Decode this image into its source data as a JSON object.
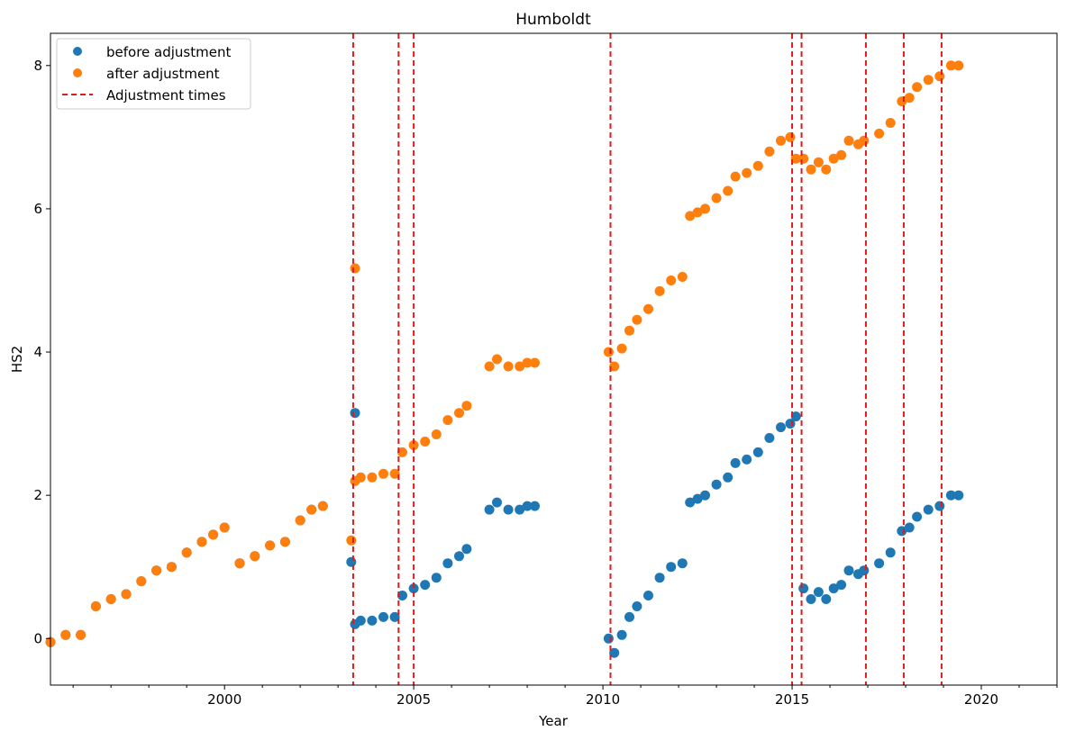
{
  "chart_data": {
    "type": "scatter",
    "title": "Humboldt",
    "xlabel": "Year",
    "ylabel": "HS2",
    "xlim": [
      1995.4,
      2022.0
    ],
    "ylim": [
      -0.65,
      8.45
    ],
    "xticks": [
      2000,
      2005,
      2010,
      2015,
      2020
    ],
    "xtick_labels": [
      "2000",
      "2005",
      "2010",
      "2015",
      "2020"
    ],
    "yticks": [
      0,
      2,
      4,
      6,
      8
    ],
    "ytick_labels": [
      "0",
      "2",
      "4",
      "6",
      "8"
    ],
    "grid": false,
    "legend": {
      "position": "top-left",
      "entries": [
        "before adjustment",
        "after adjustment",
        "Adjustment times"
      ]
    },
    "adjustment_times": [
      2003.4,
      2004.6,
      2005.0,
      2010.2,
      2015.0,
      2015.25,
      2016.95,
      2017.95,
      2018.95
    ],
    "series": [
      {
        "name": "before adjustment",
        "color": "#1f77b4",
        "x": [
          1995.4,
          1995.8,
          1996.2,
          1996.6,
          1997.0,
          1997.4,
          1997.8,
          1998.2,
          1998.6,
          1999.0,
          1999.4,
          1999.7,
          2000.0,
          2000.4,
          2000.8,
          2001.2,
          2001.6,
          2002.0,
          2002.3,
          2002.6,
          2003.35,
          2003.45,
          2003.45,
          2003.6,
          2003.9,
          2004.2,
          2004.5,
          2004.7,
          2005.0,
          2005.3,
          2005.6,
          2005.9,
          2006.2,
          2006.4,
          2007.0,
          2007.2,
          2007.5,
          2007.8,
          2008.0,
          2008.2,
          2010.15,
          2010.3,
          2010.5,
          2010.7,
          2010.9,
          2011.2,
          2011.5,
          2011.8,
          2012.1,
          2012.3,
          2012.5,
          2012.7,
          2013.0,
          2013.3,
          2013.5,
          2013.8,
          2014.1,
          2014.4,
          2014.7,
          2014.95,
          2015.1,
          2015.3,
          2015.5,
          2015.7,
          2015.9,
          2016.1,
          2016.3,
          2016.5,
          2016.75,
          2016.9,
          2017.3,
          2017.6,
          2017.9,
          2018.1,
          2018.3,
          2018.6,
          2018.9,
          2019.2,
          2019.4
        ],
        "values": [
          -0.05,
          0.05,
          0.05,
          0.45,
          0.55,
          0.62,
          0.8,
          0.95,
          1.0,
          1.2,
          1.35,
          1.45,
          1.55,
          1.05,
          1.15,
          1.3,
          1.35,
          1.65,
          1.8,
          1.85,
          1.07,
          0.2,
          3.15,
          0.25,
          0.25,
          0.3,
          0.3,
          0.6,
          0.7,
          0.75,
          0.85,
          1.05,
          1.15,
          1.25,
          1.8,
          1.9,
          1.8,
          1.8,
          1.85,
          1.85,
          0.0,
          -0.2,
          0.05,
          0.3,
          0.45,
          0.6,
          0.85,
          1.0,
          1.05,
          1.9,
          1.95,
          2.0,
          2.15,
          2.25,
          2.45,
          2.5,
          2.6,
          2.8,
          2.95,
          3.0,
          3.1,
          0.7,
          0.55,
          0.65,
          0.55,
          0.7,
          0.75,
          0.95,
          0.9,
          0.95,
          1.05,
          1.2,
          1.5,
          1.55,
          1.7,
          1.8,
          1.85,
          2.0,
          2.0
        ]
      },
      {
        "name": "after adjustment",
        "color": "#ff7f0e",
        "x": [
          1995.4,
          1995.8,
          1996.2,
          1996.6,
          1997.0,
          1997.4,
          1997.8,
          1998.2,
          1998.6,
          1999.0,
          1999.4,
          1999.7,
          2000.0,
          2000.4,
          2000.8,
          2001.2,
          2001.6,
          2002.0,
          2002.3,
          2002.6,
          2003.35,
          2003.45,
          2003.45,
          2003.6,
          2003.9,
          2004.2,
          2004.5,
          2004.7,
          2005.0,
          2005.3,
          2005.6,
          2005.9,
          2006.2,
          2006.4,
          2007.0,
          2007.2,
          2007.5,
          2007.8,
          2008.0,
          2008.2,
          2010.15,
          2010.3,
          2010.5,
          2010.7,
          2010.9,
          2011.2,
          2011.5,
          2011.8,
          2012.1,
          2012.3,
          2012.5,
          2012.7,
          2013.0,
          2013.3,
          2013.5,
          2013.8,
          2014.1,
          2014.4,
          2014.7,
          2014.95,
          2015.1,
          2015.3,
          2015.5,
          2015.7,
          2015.9,
          2016.1,
          2016.3,
          2016.5,
          2016.75,
          2016.9,
          2017.3,
          2017.6,
          2017.9,
          2018.1,
          2018.3,
          2018.6,
          2018.9,
          2019.2,
          2019.4
        ],
        "values": [
          -0.05,
          0.05,
          0.05,
          0.45,
          0.55,
          0.62,
          0.8,
          0.95,
          1.0,
          1.2,
          1.35,
          1.45,
          1.55,
          1.05,
          1.15,
          1.3,
          1.35,
          1.65,
          1.8,
          1.85,
          1.37,
          2.2,
          5.17,
          2.25,
          2.25,
          2.3,
          2.3,
          2.6,
          2.7,
          2.75,
          2.85,
          3.05,
          3.15,
          3.25,
          3.8,
          3.9,
          3.8,
          3.8,
          3.85,
          3.85,
          4.0,
          3.8,
          4.05,
          4.3,
          4.45,
          4.6,
          4.85,
          5.0,
          5.05,
          5.9,
          5.95,
          6.0,
          6.15,
          6.25,
          6.45,
          6.5,
          6.6,
          6.8,
          6.95,
          7.0,
          6.7,
          6.7,
          6.55,
          6.65,
          6.55,
          6.7,
          6.75,
          6.95,
          6.9,
          6.95,
          7.05,
          7.2,
          7.5,
          7.55,
          7.7,
          7.8,
          7.85,
          8.0,
          8.0
        ]
      }
    ]
  }
}
